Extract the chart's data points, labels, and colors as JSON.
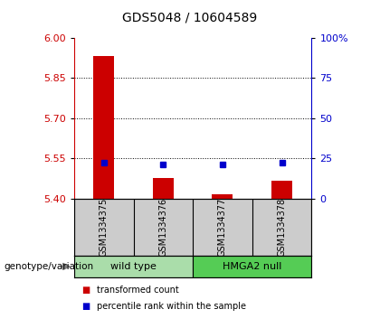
{
  "title": "GDS5048 / 10604589",
  "samples": [
    "GSM1334375",
    "GSM1334376",
    "GSM1334377",
    "GSM1334378"
  ],
  "red_values": [
    5.93,
    5.475,
    5.415,
    5.465
  ],
  "blue_values": [
    5.535,
    5.528,
    5.527,
    5.532
  ],
  "baseline": 5.4,
  "ylim_left": [
    5.4,
    6.0
  ],
  "ylim_right": [
    0,
    100
  ],
  "left_ticks": [
    5.4,
    5.55,
    5.7,
    5.85,
    6.0
  ],
  "right_ticks": [
    0,
    25,
    50,
    75,
    100
  ],
  "right_tick_labels": [
    "0",
    "25",
    "50",
    "75",
    "100%"
  ],
  "left_color": "#cc0000",
  "right_color": "#0000cc",
  "groups": [
    {
      "label": "wild type",
      "samples": [
        0,
        1
      ],
      "color": "#aaddaa"
    },
    {
      "label": "HMGA2 null",
      "samples": [
        2,
        3
      ],
      "color": "#55cc55"
    }
  ],
  "legend_items": [
    {
      "color": "#cc0000",
      "label": "transformed count"
    },
    {
      "color": "#0000cc",
      "label": "percentile rank within the sample"
    }
  ],
  "genotype_label": "genotype/variation",
  "sample_bg_color": "#cccccc",
  "plot_bg": "#ffffff",
  "bar_width": 0.35,
  "blue_marker_size": 5
}
